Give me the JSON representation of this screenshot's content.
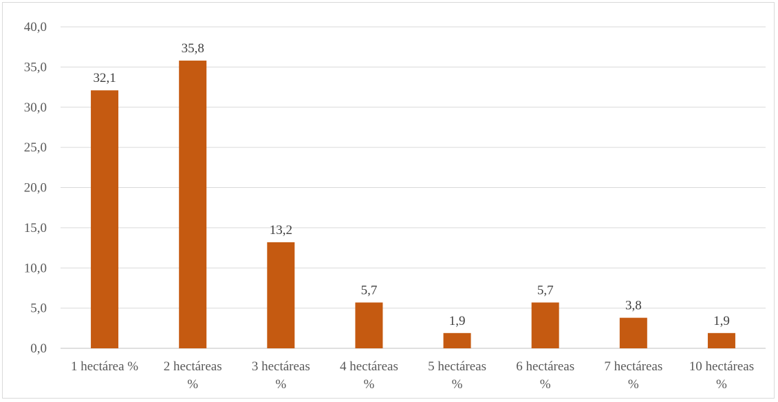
{
  "chart_data": {
    "type": "bar",
    "categories": [
      "1 hectárea %",
      "2 hectáreas %",
      "3 hectáreas %",
      "4 hectáreas %",
      "5 hectáreas %",
      "6 hectáreas %",
      "7 hectáreas %",
      "10 hectáreas %"
    ],
    "values": [
      32.1,
      35.8,
      13.2,
      5.7,
      1.9,
      5.7,
      3.8,
      1.9
    ],
    "data_labels": [
      "32,1",
      "35,8",
      "13,2",
      "5,7",
      "1,9",
      "5,7",
      "3,8",
      "1,9"
    ],
    "y_ticks": [
      "0,0",
      "5,0",
      "10,0",
      "15,0",
      "20,0",
      "25,0",
      "30,0",
      "35,0",
      "40,0"
    ],
    "ylim": [
      0,
      40
    ],
    "grid": true,
    "legend": "none",
    "colors": {
      "bar": "#c55a11",
      "grid": "#d9d9d9",
      "axis": "#bfbfbf"
    }
  }
}
